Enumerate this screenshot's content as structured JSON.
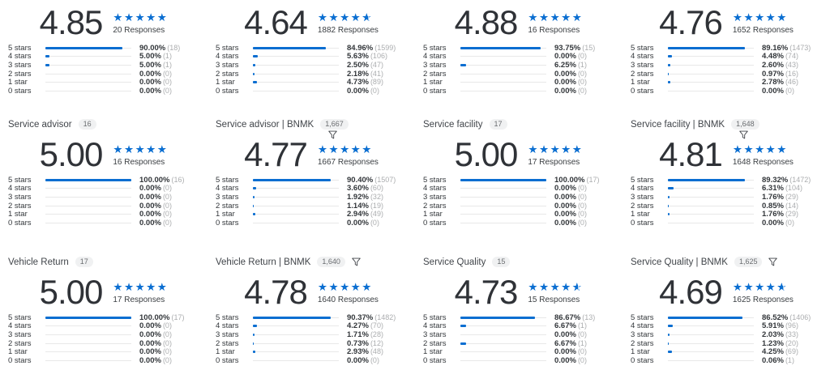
{
  "accent_color": "#0a6ed1",
  "track_color": "#e8e8e8",
  "row_labels": [
    "5 stars",
    "4 stars",
    "3 stars",
    "2 stars",
    "1 star",
    "0 stars"
  ],
  "widgets": [
    {
      "header": null,
      "score": "4.85",
      "stars": 5,
      "responses": "20 Responses",
      "rows": [
        {
          "pct": "90.00%",
          "value": 90,
          "count": "(18)"
        },
        {
          "pct": "5.00%",
          "value": 5,
          "count": "(1)"
        },
        {
          "pct": "5.00%",
          "value": 5,
          "count": "(1)"
        },
        {
          "pct": "0.00%",
          "value": 0,
          "count": "(0)"
        },
        {
          "pct": "0.00%",
          "value": 0,
          "count": "(0)"
        },
        {
          "pct": "0.00%",
          "value": 0,
          "count": "(0)"
        }
      ]
    },
    {
      "header": null,
      "score": "4.64",
      "stars": 4.5,
      "responses": "1882 Responses",
      "rows": [
        {
          "pct": "84.96%",
          "value": 84.96,
          "count": "(1599)"
        },
        {
          "pct": "5.63%",
          "value": 5.63,
          "count": "(106)"
        },
        {
          "pct": "2.50%",
          "value": 2.5,
          "count": "(47)"
        },
        {
          "pct": "2.18%",
          "value": 2.18,
          "count": "(41)"
        },
        {
          "pct": "4.73%",
          "value": 4.73,
          "count": "(89)"
        },
        {
          "pct": "0.00%",
          "value": 0,
          "count": "(0)"
        }
      ]
    },
    {
      "header": null,
      "score": "4.88",
      "stars": 5,
      "responses": "16 Responses",
      "rows": [
        {
          "pct": "93.75%",
          "value": 93.75,
          "count": "(15)"
        },
        {
          "pct": "0.00%",
          "value": 0,
          "count": "(0)"
        },
        {
          "pct": "6.25%",
          "value": 6.25,
          "count": "(1)"
        },
        {
          "pct": "0.00%",
          "value": 0,
          "count": "(0)"
        },
        {
          "pct": "0.00%",
          "value": 0,
          "count": "(0)"
        },
        {
          "pct": "0.00%",
          "value": 0,
          "count": "(0)"
        }
      ]
    },
    {
      "header": null,
      "score": "4.76",
      "stars": 5,
      "responses": "1652 Responses",
      "rows": [
        {
          "pct": "89.16%",
          "value": 89.16,
          "count": "(1473)"
        },
        {
          "pct": "4.48%",
          "value": 4.48,
          "count": "(74)"
        },
        {
          "pct": "2.60%",
          "value": 2.6,
          "count": "(43)"
        },
        {
          "pct": "0.97%",
          "value": 0.97,
          "count": "(16)"
        },
        {
          "pct": "2.78%",
          "value": 2.78,
          "count": "(46)"
        },
        {
          "pct": "0.00%",
          "value": 0,
          "count": "(0)"
        }
      ]
    },
    {
      "header": {
        "label": "Service advisor",
        "badge": "16",
        "funnel": false,
        "funnel_below": false
      },
      "score": "5.00",
      "stars": 5,
      "responses": "16 Responses",
      "rows": [
        {
          "pct": "100.00%",
          "value": 100,
          "count": "(16)"
        },
        {
          "pct": "0.00%",
          "value": 0,
          "count": "(0)"
        },
        {
          "pct": "0.00%",
          "value": 0,
          "count": "(0)"
        },
        {
          "pct": "0.00%",
          "value": 0,
          "count": "(0)"
        },
        {
          "pct": "0.00%",
          "value": 0,
          "count": "(0)"
        },
        {
          "pct": "0.00%",
          "value": 0,
          "count": "(0)"
        }
      ]
    },
    {
      "header": {
        "label": "Service advisor | BNMK",
        "badge": "1,667",
        "funnel": true,
        "funnel_below": true
      },
      "score": "4.77",
      "stars": 5,
      "responses": "1667 Responses",
      "rows": [
        {
          "pct": "90.40%",
          "value": 90.4,
          "count": "(1507)"
        },
        {
          "pct": "3.60%",
          "value": 3.6,
          "count": "(60)"
        },
        {
          "pct": "1.92%",
          "value": 1.92,
          "count": "(32)"
        },
        {
          "pct": "1.14%",
          "value": 1.14,
          "count": "(19)"
        },
        {
          "pct": "2.94%",
          "value": 2.94,
          "count": "(49)"
        },
        {
          "pct": "0.00%",
          "value": 0,
          "count": "(0)"
        }
      ]
    },
    {
      "header": {
        "label": "Service facility",
        "badge": "17",
        "funnel": false,
        "funnel_below": false
      },
      "score": "5.00",
      "stars": 5,
      "responses": "17 Responses",
      "rows": [
        {
          "pct": "100.00%",
          "value": 100,
          "count": "(17)"
        },
        {
          "pct": "0.00%",
          "value": 0,
          "count": "(0)"
        },
        {
          "pct": "0.00%",
          "value": 0,
          "count": "(0)"
        },
        {
          "pct": "0.00%",
          "value": 0,
          "count": "(0)"
        },
        {
          "pct": "0.00%",
          "value": 0,
          "count": "(0)"
        },
        {
          "pct": "0.00%",
          "value": 0,
          "count": "(0)"
        }
      ]
    },
    {
      "header": {
        "label": "Service facility | BNMK",
        "badge": "1,648",
        "funnel": true,
        "funnel_below": true
      },
      "score": "4.81",
      "stars": 5,
      "responses": "1648 Responses",
      "rows": [
        {
          "pct": "89.32%",
          "value": 89.32,
          "count": "(1472)"
        },
        {
          "pct": "6.31%",
          "value": 6.31,
          "count": "(104)"
        },
        {
          "pct": "1.76%",
          "value": 1.76,
          "count": "(29)"
        },
        {
          "pct": "0.85%",
          "value": 0.85,
          "count": "(14)"
        },
        {
          "pct": "1.76%",
          "value": 1.76,
          "count": "(29)"
        },
        {
          "pct": "0.00%",
          "value": 0,
          "count": "(0)"
        }
      ]
    },
    {
      "header": {
        "label": "Vehicle Return",
        "badge": "17",
        "funnel": false,
        "funnel_below": false
      },
      "score": "5.00",
      "stars": 5,
      "responses": "17 Responses",
      "rows": [
        {
          "pct": "100.00%",
          "value": 100,
          "count": "(17)"
        },
        {
          "pct": "0.00%",
          "value": 0,
          "count": "(0)"
        },
        {
          "pct": "0.00%",
          "value": 0,
          "count": "(0)"
        },
        {
          "pct": "0.00%",
          "value": 0,
          "count": "(0)"
        },
        {
          "pct": "0.00%",
          "value": 0,
          "count": "(0)"
        },
        {
          "pct": "0.00%",
          "value": 0,
          "count": "(0)"
        }
      ]
    },
    {
      "header": {
        "label": "Vehicle Return | BNMK",
        "badge": "1,640",
        "funnel": true,
        "funnel_below": false
      },
      "score": "4.78",
      "stars": 5,
      "responses": "1640 Responses",
      "rows": [
        {
          "pct": "90.37%",
          "value": 90.37,
          "count": "(1482)"
        },
        {
          "pct": "4.27%",
          "value": 4.27,
          "count": "(70)"
        },
        {
          "pct": "1.71%",
          "value": 1.71,
          "count": "(28)"
        },
        {
          "pct": "0.73%",
          "value": 0.73,
          "count": "(12)"
        },
        {
          "pct": "2.93%",
          "value": 2.93,
          "count": "(48)"
        },
        {
          "pct": "0.00%",
          "value": 0,
          "count": "(0)"
        }
      ]
    },
    {
      "header": {
        "label": "Service Quality",
        "badge": "15",
        "funnel": false,
        "funnel_below": false
      },
      "score": "4.73",
      "stars": 4.5,
      "responses": "15 Responses",
      "rows": [
        {
          "pct": "86.67%",
          "value": 86.67,
          "count": "(13)"
        },
        {
          "pct": "6.67%",
          "value": 6.67,
          "count": "(1)"
        },
        {
          "pct": "0.00%",
          "value": 0,
          "count": "(0)"
        },
        {
          "pct": "6.67%",
          "value": 6.67,
          "count": "(1)"
        },
        {
          "pct": "0.00%",
          "value": 0,
          "count": "(0)"
        },
        {
          "pct": "0.00%",
          "value": 0,
          "count": "(0)"
        }
      ]
    },
    {
      "header": {
        "label": "Service Quality | BNMK",
        "badge": "1,625",
        "funnel": true,
        "funnel_below": false
      },
      "score": "4.69",
      "stars": 4.5,
      "responses": "1625 Responses",
      "rows": [
        {
          "pct": "86.52%",
          "value": 86.52,
          "count": "(1406)"
        },
        {
          "pct": "5.91%",
          "value": 5.91,
          "count": "(96)"
        },
        {
          "pct": "2.03%",
          "value": 2.03,
          "count": "(33)"
        },
        {
          "pct": "1.23%",
          "value": 1.23,
          "count": "(20)"
        },
        {
          "pct": "4.25%",
          "value": 4.25,
          "count": "(69)"
        },
        {
          "pct": "0.06%",
          "value": 0.06,
          "count": "(1)"
        }
      ]
    }
  ],
  "chart_data": [
    {
      "type": "bar",
      "title": "",
      "average": 4.85,
      "responses": 20,
      "categories": [
        "5 stars",
        "4 stars",
        "3 stars",
        "2 stars",
        "1 star",
        "0 stars"
      ],
      "values_pct": [
        90.0,
        5.0,
        5.0,
        0,
        0,
        0
      ],
      "counts": [
        18,
        1,
        1,
        0,
        0,
        0
      ],
      "xlim": [
        0,
        100
      ]
    },
    {
      "type": "bar",
      "title": "",
      "average": 4.64,
      "responses": 1882,
      "categories": [
        "5 stars",
        "4 stars",
        "3 stars",
        "2 stars",
        "1 star",
        "0 stars"
      ],
      "values_pct": [
        84.96,
        5.63,
        2.5,
        2.18,
        4.73,
        0
      ],
      "counts": [
        1599,
        106,
        47,
        41,
        89,
        0
      ],
      "xlim": [
        0,
        100
      ]
    },
    {
      "type": "bar",
      "title": "",
      "average": 4.88,
      "responses": 16,
      "categories": [
        "5 stars",
        "4 stars",
        "3 stars",
        "2 stars",
        "1 star",
        "0 stars"
      ],
      "values_pct": [
        93.75,
        0,
        6.25,
        0,
        0,
        0
      ],
      "counts": [
        15,
        0,
        1,
        0,
        0,
        0
      ],
      "xlim": [
        0,
        100
      ]
    },
    {
      "type": "bar",
      "title": "",
      "average": 4.76,
      "responses": 1652,
      "categories": [
        "5 stars",
        "4 stars",
        "3 stars",
        "2 stars",
        "1 star",
        "0 stars"
      ],
      "values_pct": [
        89.16,
        4.48,
        2.6,
        0.97,
        2.78,
        0
      ],
      "counts": [
        1473,
        74,
        43,
        16,
        46,
        0
      ],
      "xlim": [
        0,
        100
      ]
    },
    {
      "type": "bar",
      "title": "Service advisor",
      "average": 5.0,
      "responses": 16,
      "categories": [
        "5 stars",
        "4 stars",
        "3 stars",
        "2 stars",
        "1 star",
        "0 stars"
      ],
      "values_pct": [
        100,
        0,
        0,
        0,
        0,
        0
      ],
      "counts": [
        16,
        0,
        0,
        0,
        0,
        0
      ],
      "xlim": [
        0,
        100
      ]
    },
    {
      "type": "bar",
      "title": "Service advisor | BNMK",
      "average": 4.77,
      "responses": 1667,
      "categories": [
        "5 stars",
        "4 stars",
        "3 stars",
        "2 stars",
        "1 star",
        "0 stars"
      ],
      "values_pct": [
        90.4,
        3.6,
        1.92,
        1.14,
        2.94,
        0
      ],
      "counts": [
        1507,
        60,
        32,
        19,
        49,
        0
      ],
      "xlim": [
        0,
        100
      ]
    },
    {
      "type": "bar",
      "title": "Service facility",
      "average": 5.0,
      "responses": 17,
      "categories": [
        "5 stars",
        "4 stars",
        "3 stars",
        "2 stars",
        "1 star",
        "0 stars"
      ],
      "values_pct": [
        100,
        0,
        0,
        0,
        0,
        0
      ],
      "counts": [
        17,
        0,
        0,
        0,
        0,
        0
      ],
      "xlim": [
        0,
        100
      ]
    },
    {
      "type": "bar",
      "title": "Service facility | BNMK",
      "average": 4.81,
      "responses": 1648,
      "categories": [
        "5 stars",
        "4 stars",
        "3 stars",
        "2 stars",
        "1 star",
        "0 stars"
      ],
      "values_pct": [
        89.32,
        6.31,
        1.76,
        0.85,
        1.76,
        0
      ],
      "counts": [
        1472,
        104,
        29,
        14,
        29,
        0
      ],
      "xlim": [
        0,
        100
      ]
    },
    {
      "type": "bar",
      "title": "Vehicle Return",
      "average": 5.0,
      "responses": 17,
      "categories": [
        "5 stars",
        "4 stars",
        "3 stars",
        "2 stars",
        "1 star",
        "0 stars"
      ],
      "values_pct": [
        100,
        0,
        0,
        0,
        0,
        0
      ],
      "counts": [
        17,
        0,
        0,
        0,
        0,
        0
      ],
      "xlim": [
        0,
        100
      ]
    },
    {
      "type": "bar",
      "title": "Vehicle Return | BNMK",
      "average": 4.78,
      "responses": 1640,
      "categories": [
        "5 stars",
        "4 stars",
        "3 stars",
        "2 stars",
        "1 star",
        "0 stars"
      ],
      "values_pct": [
        90.37,
        4.27,
        1.71,
        0.73,
        2.93,
        0
      ],
      "counts": [
        1482,
        70,
        28,
        12,
        48,
        0
      ],
      "xlim": [
        0,
        100
      ]
    },
    {
      "type": "bar",
      "title": "Service Quality",
      "average": 4.73,
      "responses": 15,
      "categories": [
        "5 stars",
        "4 stars",
        "3 stars",
        "2 stars",
        "1 star",
        "0 stars"
      ],
      "values_pct": [
        86.67,
        6.67,
        0,
        6.67,
        0,
        0
      ],
      "counts": [
        13,
        1,
        0,
        1,
        0,
        0
      ],
      "xlim": [
        0,
        100
      ]
    },
    {
      "type": "bar",
      "title": "Service Quality | BNMK",
      "average": 4.69,
      "responses": 1625,
      "categories": [
        "5 stars",
        "4 stars",
        "3 stars",
        "2 stars",
        "1 star",
        "0 stars"
      ],
      "values_pct": [
        86.52,
        5.91,
        2.03,
        1.23,
        4.25,
        0.06
      ],
      "counts": [
        1406,
        96,
        33,
        20,
        69,
        1
      ],
      "xlim": [
        0,
        100
      ]
    }
  ]
}
